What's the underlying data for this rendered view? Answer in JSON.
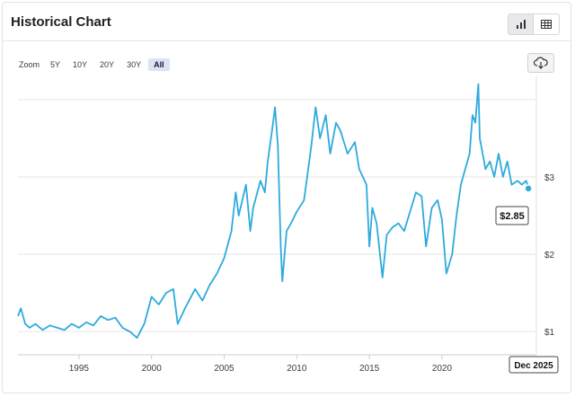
{
  "header": {
    "title": "Historical Chart"
  },
  "view_toggle": {
    "chart_icon": "bar-chart-icon",
    "table_icon": "table-icon",
    "active": "chart"
  },
  "zoom": {
    "label": "Zoom",
    "options": [
      "5Y",
      "10Y",
      "20Y",
      "30Y",
      "All"
    ],
    "active": "All"
  },
  "download": {
    "icon": "cloud-download-icon"
  },
  "tooltip": {
    "value_label": "$2.85",
    "date_label": "Dec 2025"
  },
  "colors": {
    "line": "#2eaadc",
    "grid": "#e6e6e6",
    "active_zoom": "#dde3f5"
  },
  "chart_data": {
    "type": "line",
    "title": "Historical Chart",
    "xlabel": "",
    "ylabel": "",
    "x_ticks": [
      "1995",
      "2000",
      "2005",
      "2010",
      "2015",
      "2020"
    ],
    "y_ticks": [
      "$1",
      "$2",
      "$3"
    ],
    "xlim": [
      1990.8,
      2026.5
    ],
    "ylim": [
      0.7,
      4.3
    ],
    "grid": "horizontal",
    "series": [
      {
        "values": [
          [
            1990.8,
            1.2
          ],
          [
            1991.0,
            1.3
          ],
          [
            1991.3,
            1.1
          ],
          [
            1991.6,
            1.05
          ],
          [
            1992.0,
            1.1
          ],
          [
            1992.5,
            1.02
          ],
          [
            1993.0,
            1.08
          ],
          [
            1993.5,
            1.05
          ],
          [
            1994.0,
            1.02
          ],
          [
            1994.5,
            1.1
          ],
          [
            1995.0,
            1.05
          ],
          [
            1995.5,
            1.12
          ],
          [
            1996.0,
            1.08
          ],
          [
            1996.5,
            1.2
          ],
          [
            1997.0,
            1.15
          ],
          [
            1997.5,
            1.18
          ],
          [
            1998.0,
            1.05
          ],
          [
            1998.5,
            1.0
          ],
          [
            1999.0,
            0.92
          ],
          [
            1999.5,
            1.1
          ],
          [
            2000.0,
            1.45
          ],
          [
            2000.5,
            1.35
          ],
          [
            2001.0,
            1.5
          ],
          [
            2001.5,
            1.55
          ],
          [
            2001.8,
            1.1
          ],
          [
            2002.3,
            1.3
          ],
          [
            2003.0,
            1.55
          ],
          [
            2003.5,
            1.4
          ],
          [
            2004.0,
            1.6
          ],
          [
            2004.5,
            1.75
          ],
          [
            2005.0,
            1.95
          ],
          [
            2005.5,
            2.3
          ],
          [
            2005.8,
            2.8
          ],
          [
            2006.0,
            2.5
          ],
          [
            2006.5,
            2.9
          ],
          [
            2006.8,
            2.3
          ],
          [
            2007.0,
            2.6
          ],
          [
            2007.5,
            2.95
          ],
          [
            2007.8,
            2.8
          ],
          [
            2008.0,
            3.2
          ],
          [
            2008.3,
            3.6
          ],
          [
            2008.5,
            3.9
          ],
          [
            2008.7,
            3.4
          ],
          [
            2008.9,
            2.1
          ],
          [
            2009.0,
            1.65
          ],
          [
            2009.3,
            2.3
          ],
          [
            2009.6,
            2.4
          ],
          [
            2010.0,
            2.55
          ],
          [
            2010.5,
            2.7
          ],
          [
            2011.0,
            3.4
          ],
          [
            2011.3,
            3.9
          ],
          [
            2011.6,
            3.5
          ],
          [
            2012.0,
            3.8
          ],
          [
            2012.3,
            3.3
          ],
          [
            2012.7,
            3.7
          ],
          [
            2013.0,
            3.6
          ],
          [
            2013.5,
            3.3
          ],
          [
            2014.0,
            3.45
          ],
          [
            2014.3,
            3.1
          ],
          [
            2014.8,
            2.9
          ],
          [
            2015.0,
            2.1
          ],
          [
            2015.2,
            2.6
          ],
          [
            2015.5,
            2.4
          ],
          [
            2015.9,
            1.7
          ],
          [
            2016.2,
            2.25
          ],
          [
            2016.6,
            2.35
          ],
          [
            2017.0,
            2.4
          ],
          [
            2017.4,
            2.3
          ],
          [
            2017.8,
            2.55
          ],
          [
            2018.2,
            2.8
          ],
          [
            2018.6,
            2.75
          ],
          [
            2018.9,
            2.1
          ],
          [
            2019.3,
            2.6
          ],
          [
            2019.7,
            2.7
          ],
          [
            2020.0,
            2.45
          ],
          [
            2020.3,
            1.75
          ],
          [
            2020.7,
            2.0
          ],
          [
            2021.0,
            2.5
          ],
          [
            2021.3,
            2.9
          ],
          [
            2021.6,
            3.1
          ],
          [
            2021.9,
            3.3
          ],
          [
            2022.1,
            3.8
          ],
          [
            2022.3,
            3.7
          ],
          [
            2022.5,
            4.2
          ],
          [
            2022.6,
            3.5
          ],
          [
            2022.8,
            3.3
          ],
          [
            2023.0,
            3.1
          ],
          [
            2023.3,
            3.2
          ],
          [
            2023.6,
            3.0
          ],
          [
            2023.9,
            3.3
          ],
          [
            2024.2,
            3.0
          ],
          [
            2024.5,
            3.2
          ],
          [
            2024.8,
            2.9
          ],
          [
            2025.2,
            2.95
          ],
          [
            2025.5,
            2.9
          ],
          [
            2025.8,
            2.95
          ],
          [
            2025.95,
            2.85
          ]
        ]
      }
    ]
  }
}
